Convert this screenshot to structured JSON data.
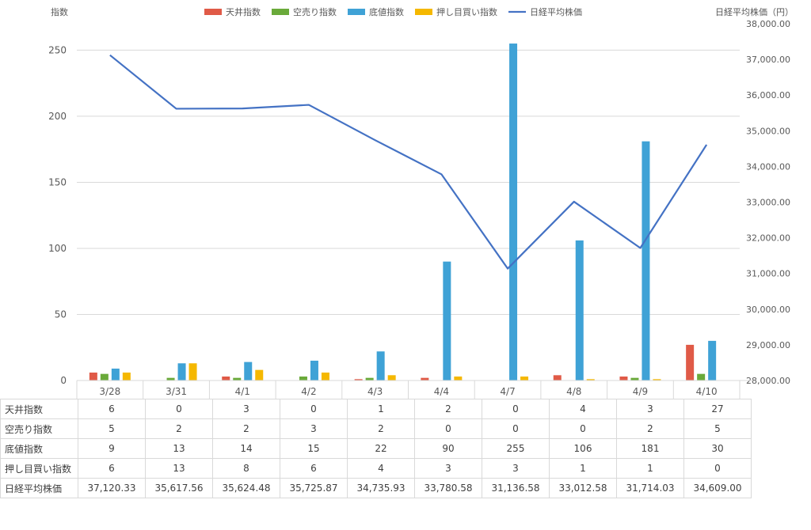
{
  "chart_data": {
    "type": "bar",
    "left_axis_label": "指数",
    "right_axis_label": "日経平均株価（円）",
    "categories": [
      "3/28",
      "3/31",
      "4/1",
      "4/2",
      "4/3",
      "4/4",
      "4/7",
      "4/8",
      "4/9",
      "4/10"
    ],
    "y_left_range": [
      0,
      270
    ],
    "y_left_ticks": [
      "0",
      "50",
      "100",
      "150",
      "200",
      "250"
    ],
    "y_right_range": [
      28000,
      38000
    ],
    "y_right_ticks": [
      "28,000.00",
      "29,000.00",
      "30,000.00",
      "31,000.00",
      "32,000.00",
      "33,000.00",
      "34,000.00",
      "35,000.00",
      "36,000.00",
      "37,000.00",
      "38,000.00"
    ],
    "grid": true,
    "legend_position": "top",
    "series": [
      {
        "name": "天井指数",
        "kind": "bar",
        "axis": "left",
        "color": "#E05A47",
        "values": [
          6,
          0,
          3,
          0,
          1,
          2,
          0,
          4,
          3,
          27
        ],
        "labels": [
          "6",
          "0",
          "3",
          "0",
          "1",
          "2",
          "0",
          "4",
          "3",
          "27"
        ]
      },
      {
        "name": "空売り指数",
        "kind": "bar",
        "axis": "left",
        "color": "#6AAA3A",
        "values": [
          5,
          2,
          2,
          3,
          2,
          0,
          0,
          0,
          2,
          5
        ],
        "labels": [
          "5",
          "2",
          "2",
          "3",
          "2",
          "0",
          "0",
          "0",
          "2",
          "5"
        ]
      },
      {
        "name": "底値指数",
        "kind": "bar",
        "axis": "left",
        "color": "#3FA2D6",
        "values": [
          9,
          13,
          14,
          15,
          22,
          90,
          255,
          106,
          181,
          30
        ],
        "labels": [
          "9",
          "13",
          "14",
          "15",
          "22",
          "90",
          "255",
          "106",
          "181",
          "30"
        ]
      },
      {
        "name": "押し目買い指数",
        "kind": "bar",
        "axis": "left",
        "color": "#F5B800",
        "values": [
          6,
          13,
          8,
          6,
          4,
          3,
          3,
          1,
          1,
          0
        ],
        "labels": [
          "6",
          "13",
          "8",
          "6",
          "4",
          "3",
          "3",
          "1",
          "1",
          "0"
        ]
      },
      {
        "name": "日経平均株価",
        "kind": "line",
        "axis": "right",
        "color": "#4472C4",
        "values": [
          37120.33,
          35617.56,
          35624.48,
          35725.87,
          34735.93,
          33780.58,
          31136.58,
          33012.58,
          31714.03,
          34609.0
        ],
        "labels": [
          "37,120.33",
          "35,617.56",
          "35,624.48",
          "35,725.87",
          "34,735.93",
          "33,780.58",
          "31,136.58",
          "33,012.58",
          "31,714.03",
          "34,609.00"
        ]
      }
    ]
  }
}
